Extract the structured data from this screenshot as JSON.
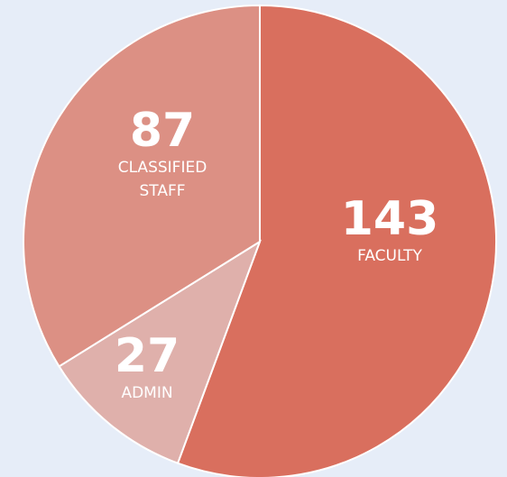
{
  "chart_data": {
    "type": "pie",
    "categories": [
      "FACULTY",
      "ADMIN",
      "CLASSIFIED STAFF"
    ],
    "values": [
      143,
      27,
      87
    ],
    "colors": [
      "#d96f5e",
      "#dfb0ab",
      "#dc9084"
    ]
  }
}
